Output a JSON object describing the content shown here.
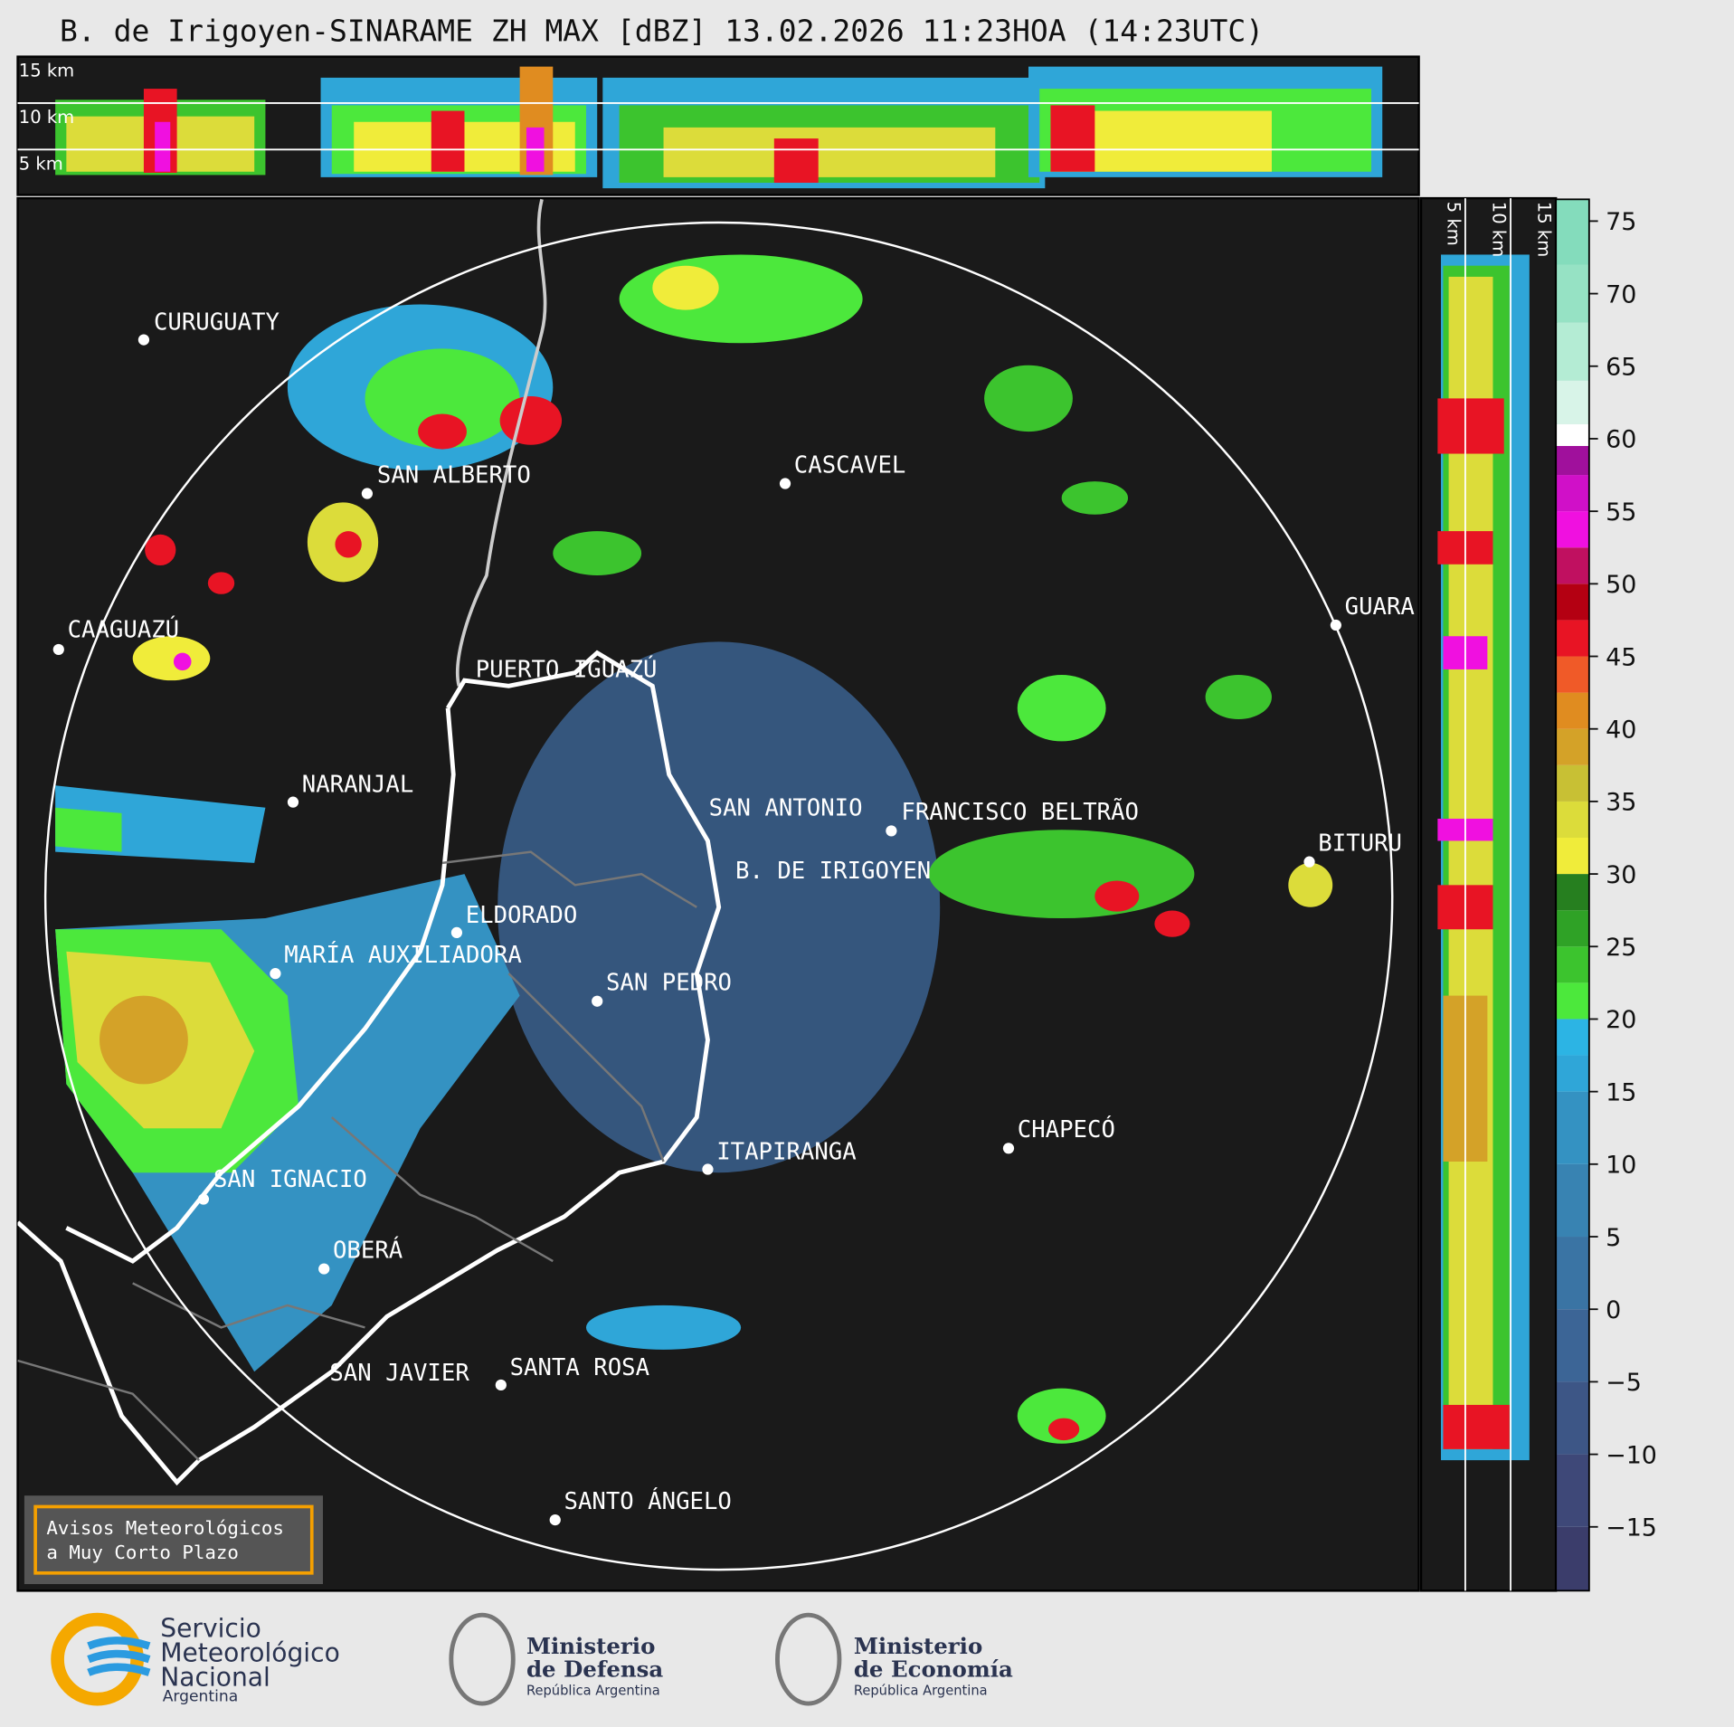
{
  "title": "B. de Irigoyen-SINARAME ZH MAX [dBZ] 13.02.2026 11:23HOA (14:23UTC)",
  "top_panel_labels": [
    "15 km",
    "10 km",
    "5 km"
  ],
  "side_panel_labels": [
    "5 km",
    "10 km",
    "15 km"
  ],
  "cities": [
    "CURUGUATY",
    "SAN ALBERTO",
    "CAAGUAZÚ",
    "PUERTO IGUAZÚ",
    "NARANJAL",
    "CASCAVEL",
    "GUARA",
    "SAN ANTONIO",
    "FRANCISCO BELTRÃO",
    "B. DE IRIGOYEN",
    "ELDORADO",
    "MARÍA AUXILIADORA",
    "SAN PEDRO",
    "BITURU",
    "CHAPECÓ",
    "ITAPIRANGA",
    "SAN IGNACIO",
    "OBERÁ",
    "SAN JAVIER",
    "SANTA ROSA",
    "SANTO ÁNGELO"
  ],
  "notice": [
    "Avisos Meteorológicos",
    "a Muy Corto Plazo"
  ],
  "colorbar": {
    "range": [
      -19.4,
      76.5
    ],
    "ticks": [
      75,
      70,
      65,
      60,
      55,
      50,
      45,
      40,
      35,
      30,
      25,
      20,
      15,
      10,
      5,
      0,
      {
        "value": -5,
        "label": "−5"
      },
      {
        "value": -10,
        "label": "−10"
      },
      {
        "value": -15,
        "label": "−15"
      }
    ],
    "bands": [
      {
        "from": -19.4,
        "color": "#3b3d6b"
      },
      {
        "from": -15,
        "color": "#3e4878"
      },
      {
        "from": -10,
        "color": "#3d5686"
      },
      {
        "from": -5,
        "color": "#3c6596"
      },
      {
        "from": 0,
        "color": "#3a74a4"
      },
      {
        "from": 5,
        "color": "#3883b2"
      },
      {
        "from": 10,
        "color": "#3492c2"
      },
      {
        "from": 15,
        "color": "#2fa6d8"
      },
      {
        "from": 17.5,
        "color": "#2cb4e4"
      },
      {
        "from": 20,
        "color": "#4ce83c"
      },
      {
        "from": 22.5,
        "color": "#3cc42e"
      },
      {
        "from": 25,
        "color": "#2fa226"
      },
      {
        "from": 27.5,
        "color": "#267f1f"
      },
      {
        "from": 30,
        "color": "#f0ec3a"
      },
      {
        "from": 32.5,
        "color": "#dcdc3a"
      },
      {
        "from": 35,
        "color": "#c8c034"
      },
      {
        "from": 37.5,
        "color": "#d4a228"
      },
      {
        "from": 40,
        "color": "#e08c20"
      },
      {
        "from": 42.5,
        "color": "#f05a28"
      },
      {
        "from": 45,
        "color": "#e81424"
      },
      {
        "from": 47.5,
        "color": "#b40012"
      },
      {
        "from": 50,
        "color": "#c01060"
      },
      {
        "from": 52.5,
        "color": "#f010e0"
      },
      {
        "from": 55,
        "color": "#d010c8"
      },
      {
        "from": 57.5,
        "color": "#a0109c"
      },
      {
        "from": 59.5,
        "color": "#ffffff"
      },
      {
        "from": 61,
        "color": "#d8f4e8"
      },
      {
        "from": 64,
        "color": "#b4ecd4"
      },
      {
        "from": 68,
        "color": "#96e2c4"
      },
      {
        "from": 72,
        "color": "#84dcbc"
      }
    ]
  },
  "footer": {
    "smn": [
      "Servicio",
      "Meteorológico",
      "Nacional",
      "Argentina"
    ],
    "defensa": [
      "Ministerio",
      "de Defensa",
      "República Argentina"
    ],
    "economia": [
      "Ministerio",
      "de Economía",
      "República Argentina"
    ]
  }
}
